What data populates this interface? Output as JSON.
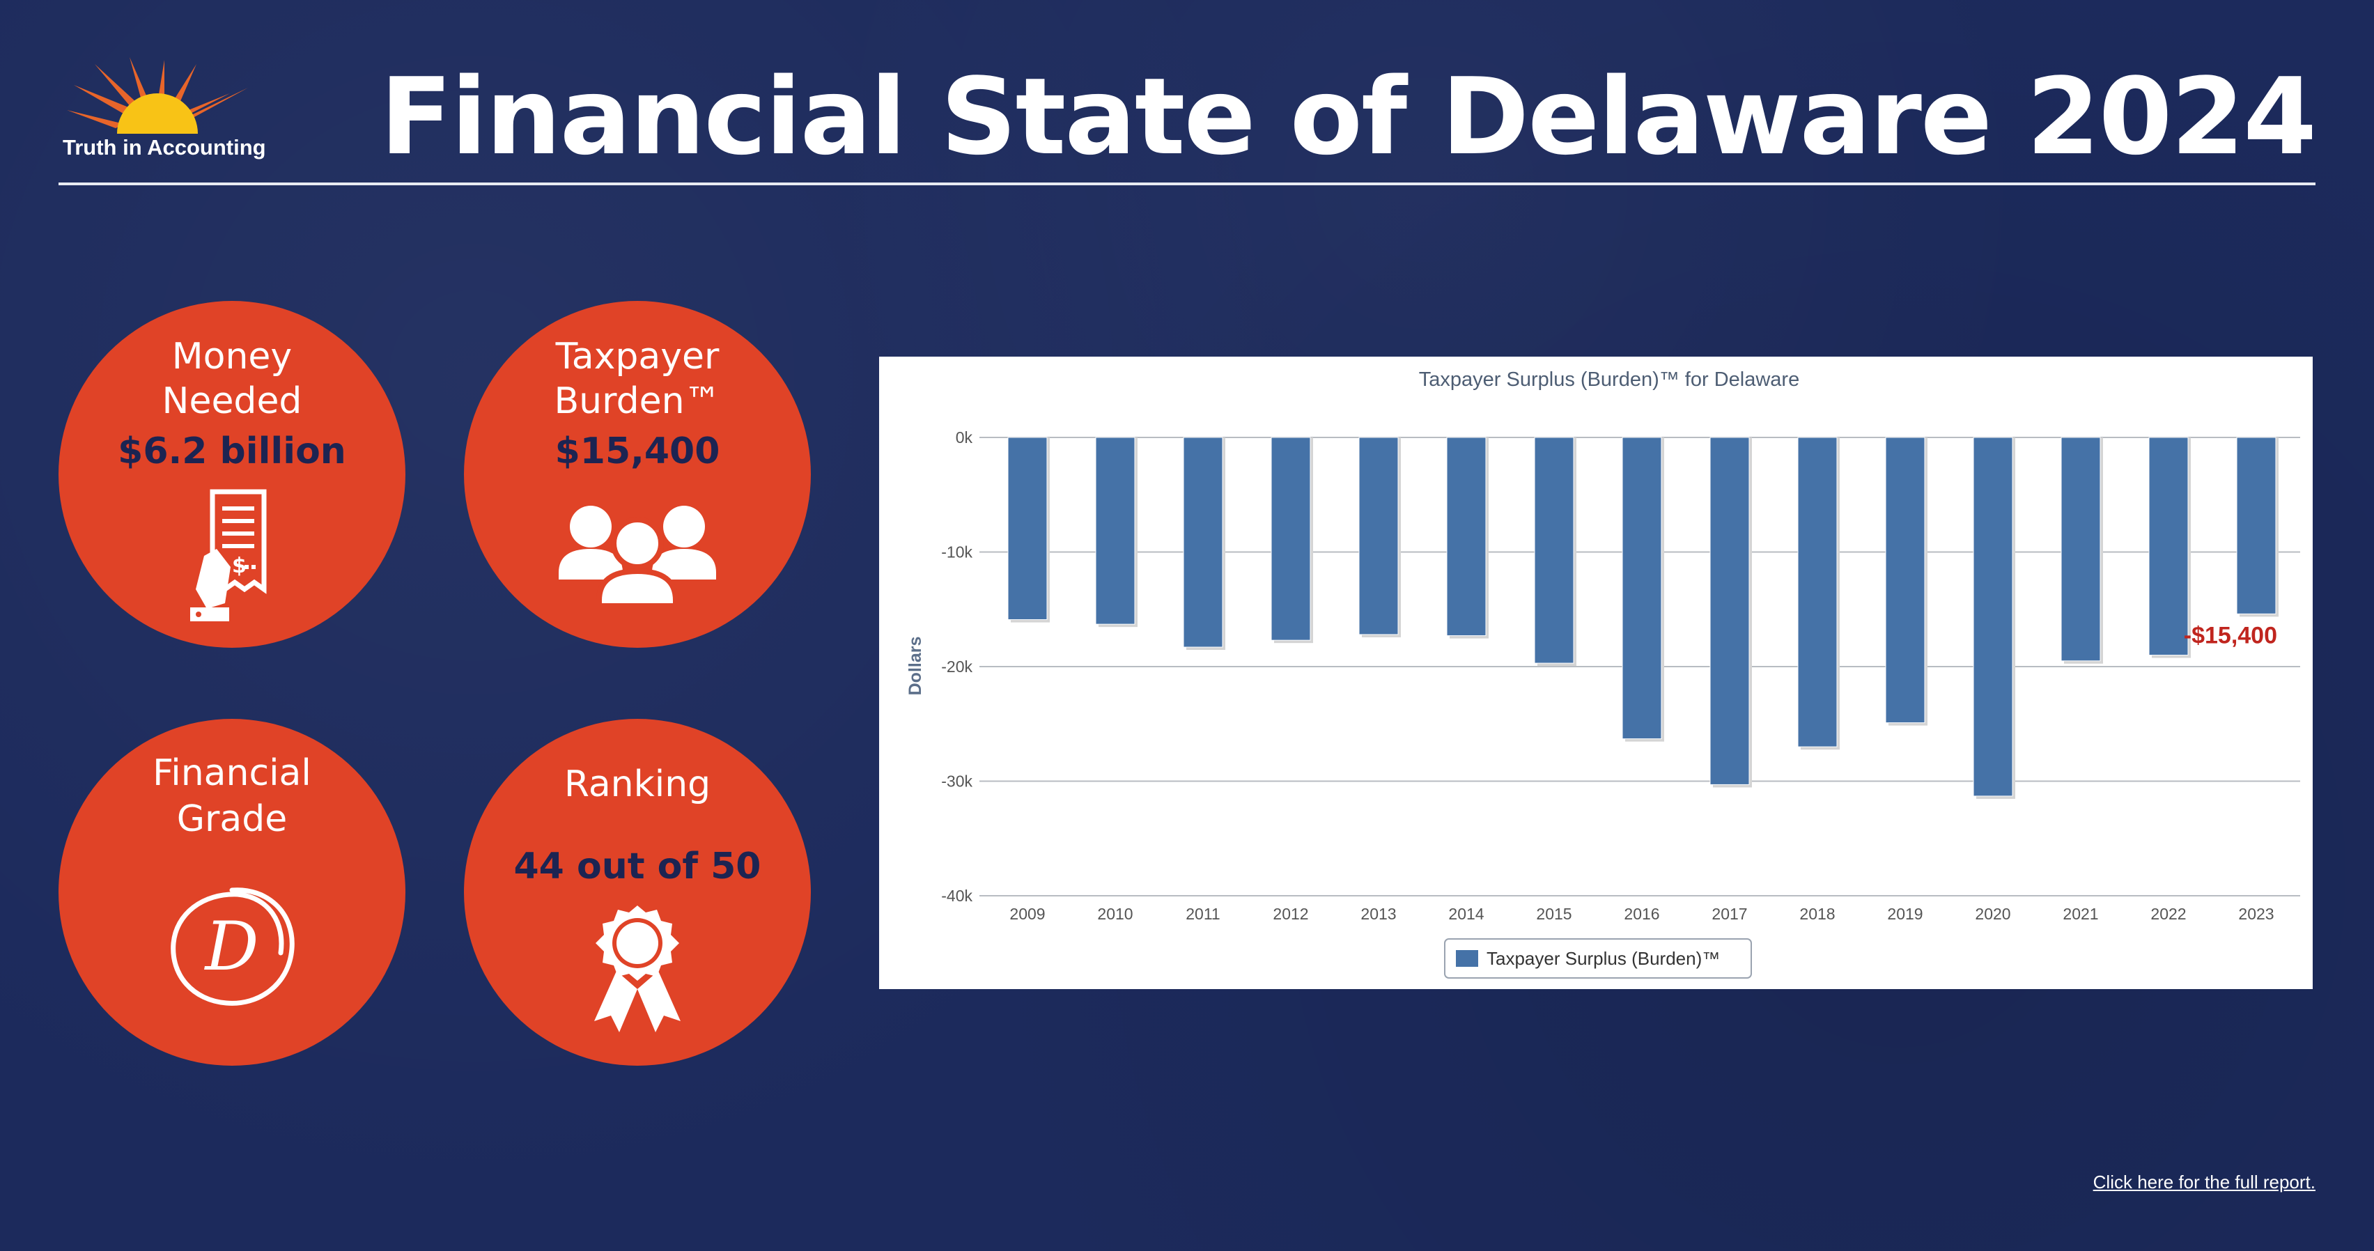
{
  "brand": {
    "name": "Truth in Accounting"
  },
  "header": {
    "title": "Financial State of Delaware 2024"
  },
  "stats": {
    "money_needed": {
      "label_line1": "Money",
      "label_line2": "Needed",
      "value": "$6.2 billion"
    },
    "taxpayer_burden": {
      "label_line1": "Taxpayer",
      "label_line2": "Burden™",
      "value": "$15,400"
    },
    "financial_grade": {
      "label_line1": "Financial",
      "label_line2": "Grade",
      "grade": "D"
    },
    "ranking": {
      "label": "Ranking",
      "value": "44 out of 50"
    }
  },
  "colors": {
    "circle": "#e04327",
    "background": "#1c2a5c",
    "bar": "#4572a7",
    "callout": "#c0251e"
  },
  "chart_data": {
    "type": "bar",
    "title": "Taxpayer Surplus (Burden)™ for Delaware",
    "ylabel": "Dollars",
    "xlabel": "",
    "categories": [
      "2009",
      "2010",
      "2011",
      "2012",
      "2013",
      "2014",
      "2015",
      "2016",
      "2017",
      "2018",
      "2019",
      "2020",
      "2021",
      "2022",
      "2023"
    ],
    "series": [
      {
        "name": "Taxpayer Surplus (Burden)™",
        "values": [
          -15900,
          -16300,
          -18300,
          -17700,
          -17200,
          -17300,
          -19700,
          -26300,
          -30300,
          -27000,
          -24900,
          -31300,
          -19500,
          -19000,
          -15400
        ]
      }
    ],
    "ylim": [
      -40000,
      0
    ],
    "yticks": [
      {
        "value": 0,
        "label": "0k"
      },
      {
        "value": -10000,
        "label": "-10k"
      },
      {
        "value": -20000,
        "label": "-20k"
      },
      {
        "value": -30000,
        "label": "-30k"
      },
      {
        "value": -40000,
        "label": "-40k"
      }
    ],
    "grid": true,
    "legend": "bottom-center",
    "annotation": {
      "category": "2023",
      "text": "-$15,400"
    }
  },
  "footer": {
    "link": "Click here for the full report."
  }
}
